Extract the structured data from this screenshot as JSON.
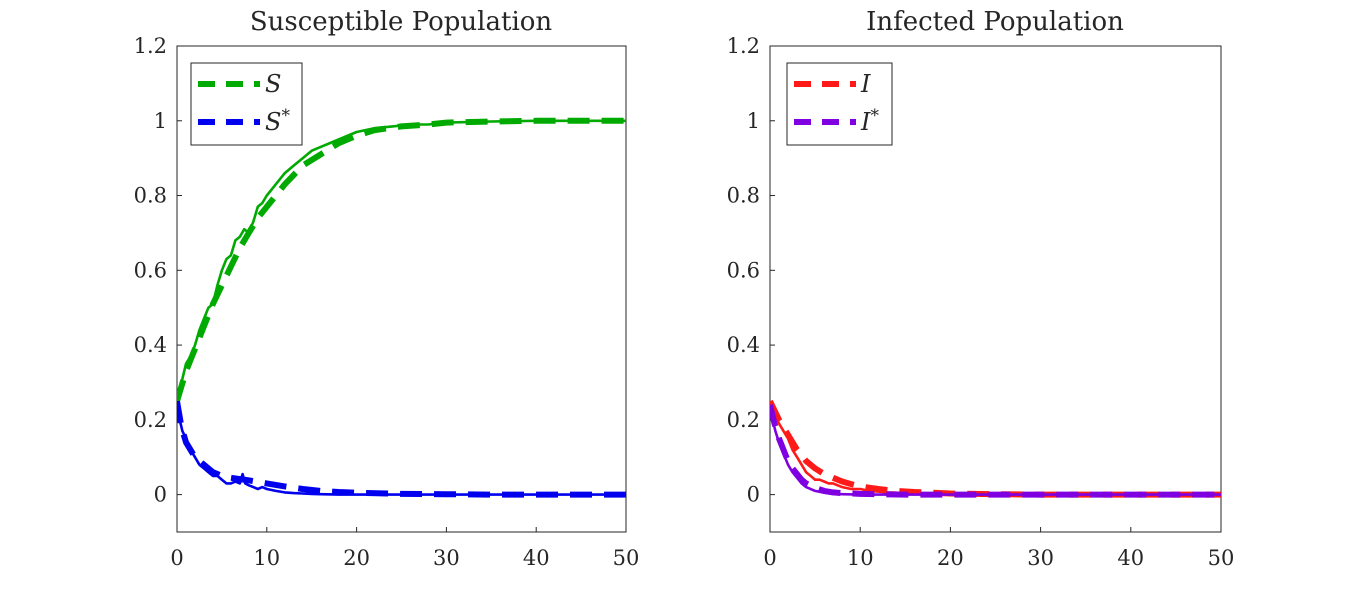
{
  "chart_data": [
    {
      "type": "line",
      "title": "Susceptible Population",
      "xlabel": "",
      "ylabel": "",
      "xlim": [
        0,
        50
      ],
      "ylim": [
        -0.1,
        1.2
      ],
      "xticks": [
        0,
        10,
        20,
        30,
        40,
        50
      ],
      "xtick_labels": [
        "0",
        "10",
        "20",
        "30",
        "40",
        "50"
      ],
      "yticks": [
        0,
        0.2,
        0.4,
        0.6,
        0.8,
        1,
        1.2
      ],
      "ytick_labels": [
        "0",
        "0.2",
        "0.4",
        "0.6",
        "0.8",
        "1",
        "1.2"
      ],
      "grid": false,
      "legend_position": "top-left",
      "legend": [
        {
          "label": "S",
          "sup": "",
          "color": "#00aa00"
        },
        {
          "label": "S",
          "sup": "*",
          "color": "#0000ee"
        }
      ],
      "series": [
        {
          "name": "S",
          "style": "dashed",
          "color": "#00aa00",
          "x": [
            0,
            1,
            2,
            3,
            4,
            5,
            6,
            7,
            8,
            9,
            10,
            12,
            14,
            16,
            18,
            20,
            22,
            25,
            28,
            30,
            35,
            40,
            45,
            50
          ],
          "y": [
            0.25,
            0.33,
            0.39,
            0.45,
            0.51,
            0.56,
            0.61,
            0.66,
            0.7,
            0.74,
            0.77,
            0.83,
            0.88,
            0.91,
            0.94,
            0.96,
            0.975,
            0.985,
            0.99,
            0.995,
            0.998,
            1.0,
            1.0,
            1.0
          ]
        },
        {
          "name": "",
          "style": "solid",
          "color": "#00aa00",
          "x": [
            0,
            0.5,
            1,
            1.5,
            2,
            2.5,
            3,
            3.5,
            4,
            4.5,
            5,
            5.5,
            6,
            6.5,
            7,
            7.5,
            8,
            8.5,
            9,
            9.5,
            10,
            11,
            12,
            13,
            14,
            15,
            16,
            18,
            20,
            22,
            24,
            26,
            28,
            30,
            35,
            40,
            45,
            50
          ],
          "y": [
            0.25,
            0.3,
            0.35,
            0.37,
            0.4,
            0.44,
            0.47,
            0.5,
            0.51,
            0.56,
            0.6,
            0.63,
            0.64,
            0.68,
            0.69,
            0.71,
            0.7,
            0.73,
            0.77,
            0.78,
            0.8,
            0.83,
            0.86,
            0.88,
            0.9,
            0.92,
            0.93,
            0.95,
            0.97,
            0.98,
            0.985,
            0.99,
            0.99,
            0.995,
            0.998,
            1.0,
            1.0,
            1.0
          ]
        },
        {
          "name": "S*",
          "style": "dashed",
          "color": "#0000ee",
          "x": [
            0,
            0.5,
            1,
            1.5,
            2,
            3,
            4,
            5,
            6,
            8,
            10,
            12,
            14,
            16,
            18,
            20,
            25,
            30,
            35,
            40,
            45,
            50
          ],
          "y": [
            0.25,
            0.18,
            0.14,
            0.12,
            0.1,
            0.08,
            0.06,
            0.05,
            0.045,
            0.038,
            0.03,
            0.022,
            0.015,
            0.01,
            0.007,
            0.005,
            0.002,
            0.001,
            0,
            0,
            0,
            0
          ]
        },
        {
          "name": "",
          "style": "solid",
          "color": "#0000ee",
          "x": [
            0,
            0.3,
            0.6,
            1,
            1.5,
            2,
            2.5,
            3,
            3.5,
            4,
            4.5,
            5,
            5.5,
            6,
            6.5,
            7,
            7.3,
            7.6,
            8,
            8.5,
            9,
            9.5,
            10,
            11,
            12,
            13,
            14,
            15,
            16,
            18,
            20,
            25,
            30,
            35,
            40,
            45,
            50
          ],
          "y": [
            0.25,
            0.2,
            0.17,
            0.15,
            0.12,
            0.1,
            0.08,
            0.07,
            0.06,
            0.05,
            0.05,
            0.04,
            0.03,
            0.03,
            0.035,
            0.03,
            0.055,
            0.03,
            0.025,
            0.02,
            0.015,
            0.02,
            0.015,
            0.01,
            0.006,
            0.004,
            0.003,
            0.002,
            0.001,
            0,
            0,
            0,
            0,
            0,
            0,
            0,
            0
          ]
        }
      ]
    },
    {
      "type": "line",
      "title": "Infected Population",
      "xlabel": "",
      "ylabel": "",
      "xlim": [
        0,
        50
      ],
      "ylim": [
        -0.1,
        1.2
      ],
      "xticks": [
        0,
        10,
        20,
        30,
        40,
        50
      ],
      "xtick_labels": [
        "0",
        "10",
        "20",
        "30",
        "40",
        "50"
      ],
      "yticks": [
        0,
        0.2,
        0.4,
        0.6,
        0.8,
        1,
        1.2
      ],
      "ytick_labels": [
        "0",
        "0.2",
        "0.4",
        "0.6",
        "0.8",
        "1",
        "1.2"
      ],
      "grid": false,
      "legend_position": "top-left",
      "legend": [
        {
          "label": "I",
          "sup": "",
          "color": "#ff1a1a"
        },
        {
          "label": "I",
          "sup": "*",
          "color": "#7f00e0"
        }
      ],
      "series": [
        {
          "name": "I",
          "style": "dashed",
          "color": "#ff1a1a",
          "x": [
            0,
            1,
            2,
            3,
            4,
            5,
            6,
            7,
            8,
            9,
            10,
            12,
            14,
            16,
            18,
            20,
            25,
            30,
            40,
            50
          ],
          "y": [
            0.25,
            0.2,
            0.16,
            0.12,
            0.09,
            0.07,
            0.055,
            0.045,
            0.035,
            0.028,
            0.022,
            0.015,
            0.01,
            0.007,
            0.005,
            0.003,
            0.001,
            0,
            0,
            0
          ]
        },
        {
          "name": "",
          "style": "solid",
          "color": "#ff1a1a",
          "x": [
            0,
            0.5,
            1,
            1.5,
            2,
            2.5,
            3,
            3.5,
            4,
            4.5,
            5,
            5.5,
            6,
            6.5,
            7,
            7.5,
            8,
            9,
            10,
            11,
            12,
            13,
            14,
            16,
            18,
            20,
            25,
            30,
            40,
            50
          ],
          "y": [
            0.25,
            0.22,
            0.19,
            0.17,
            0.15,
            0.12,
            0.1,
            0.08,
            0.06,
            0.05,
            0.04,
            0.04,
            0.035,
            0.03,
            0.03,
            0.025,
            0.02,
            0.015,
            0.015,
            0.01,
            0.008,
            0.006,
            0.005,
            0.003,
            0.002,
            0.001,
            0,
            0,
            0,
            0
          ]
        },
        {
          "name": "I*",
          "style": "dashed",
          "color": "#7f00e0",
          "x": [
            0,
            0.5,
            1,
            1.5,
            2,
            2.5,
            3,
            3.5,
            4,
            5,
            6,
            7,
            8,
            10,
            12,
            15,
            20,
            30,
            40,
            50
          ],
          "y": [
            0.24,
            0.19,
            0.15,
            0.12,
            0.09,
            0.07,
            0.055,
            0.04,
            0.03,
            0.018,
            0.01,
            0.006,
            0.004,
            0.002,
            0.001,
            0,
            0,
            0,
            0,
            0
          ]
        },
        {
          "name": "",
          "style": "solid",
          "color": "#7f00e0",
          "x": [
            0,
            0.3,
            0.6,
            1,
            1.5,
            2,
            2.5,
            3,
            3.5,
            4,
            5,
            6,
            7,
            8,
            10,
            12,
            15,
            20,
            30,
            40,
            50
          ],
          "y": [
            0.24,
            0.2,
            0.17,
            0.14,
            0.11,
            0.08,
            0.06,
            0.045,
            0.03,
            0.02,
            0.01,
            0.005,
            0.002,
            0.001,
            0,
            0,
            0,
            0,
            0,
            0,
            0
          ]
        }
      ]
    }
  ]
}
